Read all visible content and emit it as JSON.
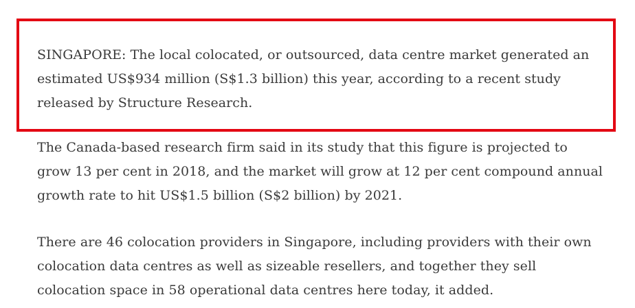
{
  "article": {
    "paragraphs": [
      {
        "lines": [
          "SINGAPORE: The local colocated, or outsourced, data centre market generated an",
          "estimated US$934 million (S$1.3 billion) this year, according to a recent study",
          "released by Structure Research."
        ]
      },
      {
        "lines": [
          "The Canada-based research firm said in its study that this figure is projected to",
          "grow 13 per cent in 2018, and the market will grow at 12 per cent compound annual",
          "growth rate to hit US$1.5 billion (S$2 billion) by 2021."
        ]
      },
      {
        "lines": [
          "There are 46 colocation providers in Singapore, including providers with their own",
          "colocation data centres as well as sizeable resellers, and together they sell",
          "colocation space in 58 operational data centres here today, it added."
        ]
      }
    ]
  },
  "colors": {
    "highlight_border": "#e30613",
    "text": "#3a3a3a",
    "background": "#ffffff"
  }
}
